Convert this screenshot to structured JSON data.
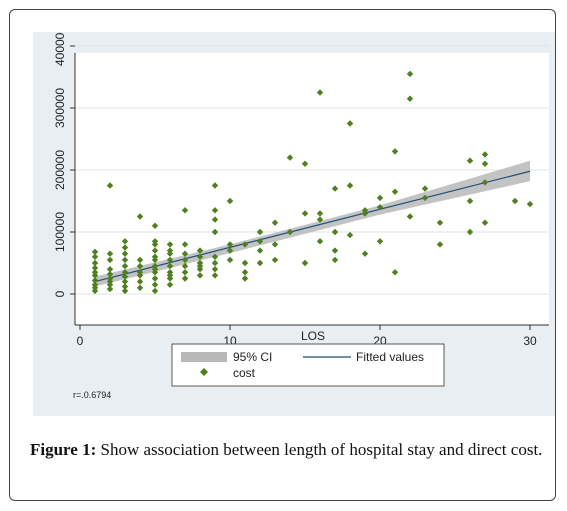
{
  "chart_data": {
    "type": "scatter",
    "xlabel": "LOS",
    "ylabel": "",
    "xlim": [
      0,
      30
    ],
    "ylim": [
      -10000,
      420000
    ],
    "xticks": [
      0,
      10,
      20,
      30
    ],
    "yticks": [
      0,
      100000,
      200000,
      300000,
      400000
    ],
    "ytick_labels": [
      "0",
      "100000",
      "200000",
      "300000",
      "400000"
    ],
    "grid": true,
    "legend_placement": "bottom",
    "legend": {
      "ci_label": "95% CI",
      "fit_label": "Fitted values",
      "points_label": "cost"
    },
    "annotation": "r=.0.6794",
    "colors": {
      "points": "#4f7f1e",
      "fit": "#1f4e79",
      "ci": "#b8b8b8",
      "plot_bg": "#ffffff",
      "panel_bg": "#e8eef1",
      "grid": "#dde6ea"
    },
    "fitted_line": {
      "x": [
        1,
        30
      ],
      "y": [
        20000,
        198000
      ]
    },
    "ci_band": {
      "x": [
        1,
        10,
        20,
        30
      ],
      "upper": [
        28000,
        80000,
        143000,
        215000
      ],
      "lower": [
        12000,
        66000,
        128000,
        182000
      ]
    },
    "series": [
      {
        "name": "cost",
        "x": [
          1,
          1,
          1,
          1,
          1,
          1,
          1,
          1,
          1,
          1,
          2,
          2,
          2,
          2,
          2,
          2,
          2,
          2,
          2,
          3,
          3,
          3,
          3,
          3,
          3,
          3,
          3,
          3,
          3,
          4,
          4,
          4,
          4,
          4,
          4,
          4,
          5,
          5,
          5,
          5,
          5,
          5,
          5,
          5,
          5,
          5,
          5,
          5,
          6,
          6,
          6,
          6,
          6,
          6,
          6,
          6,
          6,
          7,
          7,
          7,
          7,
          7,
          7,
          7,
          8,
          8,
          8,
          8,
          8,
          8,
          9,
          9,
          9,
          9,
          9,
          9,
          9,
          9,
          10,
          10,
          10,
          10,
          11,
          11,
          11,
          11,
          12,
          12,
          12,
          12,
          13,
          13,
          13,
          14,
          14,
          15,
          15,
          15,
          16,
          16,
          16,
          16,
          17,
          17,
          17,
          17,
          18,
          18,
          18,
          19,
          19,
          19,
          20,
          20,
          20,
          21,
          21,
          21,
          22,
          22,
          22,
          23,
          23,
          24,
          24,
          26,
          26,
          26,
          27,
          27,
          27,
          27,
          29,
          30
        ],
        "y": [
          5000,
          10000,
          15000,
          22000,
          30000,
          35000,
          42000,
          50000,
          60000,
          68000,
          8000,
          15000,
          25000,
          32000,
          40000,
          55000,
          65000,
          175000,
          20000,
          5000,
          12000,
          20000,
          28000,
          35000,
          45000,
          55000,
          65000,
          75000,
          85000,
          10000,
          20000,
          35000,
          45000,
          55000,
          125000,
          30000,
          5000,
          15000,
          25000,
          35000,
          45000,
          55000,
          60000,
          70000,
          80000,
          85000,
          110000,
          40000,
          15000,
          25000,
          35000,
          45000,
          55000,
          65000,
          70000,
          80000,
          30000,
          25000,
          35000,
          45000,
          55000,
          65000,
          80000,
          135000,
          30000,
          40000,
          50000,
          60000,
          70000,
          45000,
          30000,
          40000,
          50000,
          60000,
          100000,
          120000,
          135000,
          175000,
          55000,
          70000,
          80000,
          150000,
          25000,
          35000,
          50000,
          80000,
          50000,
          70000,
          85000,
          100000,
          55000,
          80000,
          115000,
          100000,
          220000,
          50000,
          130000,
          210000,
          85000,
          120000,
          130000,
          325000,
          55000,
          70000,
          100000,
          170000,
          95000,
          175000,
          275000,
          65000,
          130000,
          135000,
          85000,
          140000,
          155000,
          35000,
          165000,
          230000,
          125000,
          315000,
          355000,
          155000,
          170000,
          80000,
          115000,
          100000,
          150000,
          215000,
          115000,
          180000,
          210000,
          225000,
          150000,
          145000
        ]
      }
    ]
  },
  "caption": {
    "label": "Figure 1:",
    "text": " Show association between length of hospital stay and direct cost."
  }
}
